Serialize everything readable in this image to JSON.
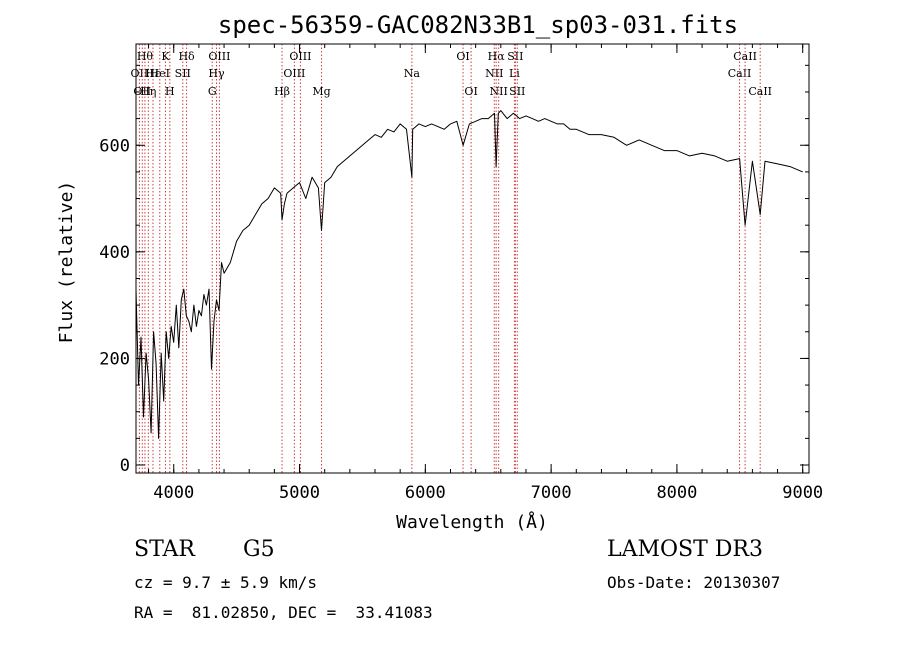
{
  "chart_data": {
    "type": "line",
    "title": "spec-56359-GAC082N33B1_sp03-031.fits",
    "xlabel": "Wavelength (Å)",
    "ylabel": "Flux (relative)",
    "xlim": [
      3700,
      9050
    ],
    "ylim": [
      -15,
      790
    ],
    "x_ticks": [
      4000,
      5000,
      6000,
      7000,
      8000,
      9000
    ],
    "x_tick_labels": [
      "4000",
      "5000",
      "6000",
      "7000",
      "8000",
      "9000"
    ],
    "y_ticks": [
      0,
      200,
      400,
      600
    ],
    "y_tick_labels": [
      "0",
      "200",
      "400",
      "600"
    ],
    "x_minor_step": 200,
    "y_minor_step": 50,
    "grid": false,
    "line_color": "#000000",
    "marker_color": "#d04040",
    "series": [
      {
        "name": "flux",
        "x": [
          3700,
          3720,
          3740,
          3760,
          3780,
          3800,
          3820,
          3840,
          3860,
          3880,
          3900,
          3920,
          3940,
          3960,
          3980,
          4000,
          4020,
          4040,
          4060,
          4080,
          4100,
          4120,
          4140,
          4160,
          4180,
          4200,
          4220,
          4240,
          4260,
          4280,
          4300,
          4320,
          4340,
          4360,
          4380,
          4400,
          4450,
          4500,
          4550,
          4600,
          4650,
          4700,
          4750,
          4800,
          4850,
          4861,
          4880,
          4900,
          4950,
          5000,
          5050,
          5100,
          5150,
          5175,
          5200,
          5250,
          5300,
          5350,
          5400,
          5450,
          5500,
          5550,
          5600,
          5650,
          5700,
          5750,
          5800,
          5850,
          5893,
          5900,
          5950,
          6000,
          6050,
          6100,
          6150,
          6200,
          6250,
          6300,
          6350,
          6400,
          6450,
          6500,
          6550,
          6563,
          6580,
          6600,
          6650,
          6700,
          6750,
          6800,
          6850,
          6900,
          6950,
          7000,
          7050,
          7100,
          7150,
          7200,
          7300,
          7400,
          7500,
          7600,
          7700,
          7800,
          7900,
          8000,
          8100,
          8200,
          8300,
          8400,
          8498,
          8542,
          8600,
          8662,
          8700,
          8800,
          8900,
          9000
        ],
        "values": [
          330,
          150,
          240,
          90,
          210,
          160,
          60,
          250,
          190,
          50,
          210,
          120,
          250,
          200,
          260,
          230,
          300,
          220,
          310,
          330,
          280,
          270,
          250,
          300,
          260,
          290,
          280,
          320,
          300,
          330,
          180,
          270,
          310,
          290,
          380,
          360,
          380,
          420,
          440,
          450,
          470,
          490,
          500,
          520,
          510,
          460,
          490,
          510,
          520,
          530,
          500,
          540,
          520,
          440,
          530,
          540,
          560,
          570,
          580,
          590,
          600,
          610,
          620,
          615,
          630,
          625,
          640,
          630,
          540,
          630,
          640,
          635,
          640,
          635,
          630,
          640,
          645,
          600,
          640,
          645,
          650,
          650,
          660,
          560,
          660,
          665,
          650,
          660,
          650,
          655,
          650,
          645,
          650,
          645,
          640,
          640,
          630,
          630,
          620,
          620,
          615,
          600,
          610,
          600,
          590,
          590,
          580,
          585,
          580,
          570,
          575,
          450,
          570,
          470,
          570,
          565,
          560,
          550
        ]
      }
    ],
    "line_markers": [
      {
        "x": 3727,
        "label": "OII",
        "row": 1
      },
      {
        "x": 3750,
        "label": "OII",
        "row": 2
      },
      {
        "x": 3771,
        "label": "Hθ",
        "row": 0
      },
      {
        "x": 3798,
        "label": "Hη",
        "row": 2
      },
      {
        "x": 3835,
        "label": "Hε",
        "row": 1
      },
      {
        "x": 3889,
        "label": "HeI",
        "row": 1
      },
      {
        "x": 3934,
        "label": "K",
        "row": 0
      },
      {
        "x": 3969,
        "label": "H",
        "row": 2
      },
      {
        "x": 4072,
        "label": "SII",
        "row": 1
      },
      {
        "x": 4102,
        "label": "Hδ",
        "row": 0
      },
      {
        "x": 4306,
        "label": "G",
        "row": 2
      },
      {
        "x": 4340,
        "label": "Hγ",
        "row": 1
      },
      {
        "x": 4363,
        "label": "OIII",
        "row": 0
      },
      {
        "x": 4861,
        "label": "Hβ",
        "row": 2
      },
      {
        "x": 4959,
        "label": "OIII",
        "row": 1
      },
      {
        "x": 5007,
        "label": "OIII",
        "row": 0
      },
      {
        "x": 5175,
        "label": "Mg",
        "row": 2
      },
      {
        "x": 5893,
        "label": "Na",
        "row": 1
      },
      {
        "x": 6300,
        "label": "OI",
        "row": 0
      },
      {
        "x": 6364,
        "label": "OI",
        "row": 2
      },
      {
        "x": 6548,
        "label": "NII",
        "row": 1
      },
      {
        "x": 6563,
        "label": "Hα",
        "row": 0
      },
      {
        "x": 6583,
        "label": "NII",
        "row": 2
      },
      {
        "x": 6708,
        "label": "Li",
        "row": 1
      },
      {
        "x": 6716,
        "label": "SII",
        "row": 0
      },
      {
        "x": 6731,
        "label": "SII",
        "row": 2
      },
      {
        "x": 8498,
        "label": "CaII",
        "row": 1
      },
      {
        "x": 8542,
        "label": "CaII",
        "row": 0
      },
      {
        "x": 8662,
        "label": "CaII",
        "row": 2
      }
    ]
  },
  "info": {
    "class": "STAR",
    "subclass": "G5",
    "survey": "LAMOST DR3",
    "redshift": "cz = 9.7 ± 5.9 km/s",
    "obs_date": "Obs-Date: 20130307",
    "coordinates": "RA =  81.02850, DEC =  33.41083"
  }
}
